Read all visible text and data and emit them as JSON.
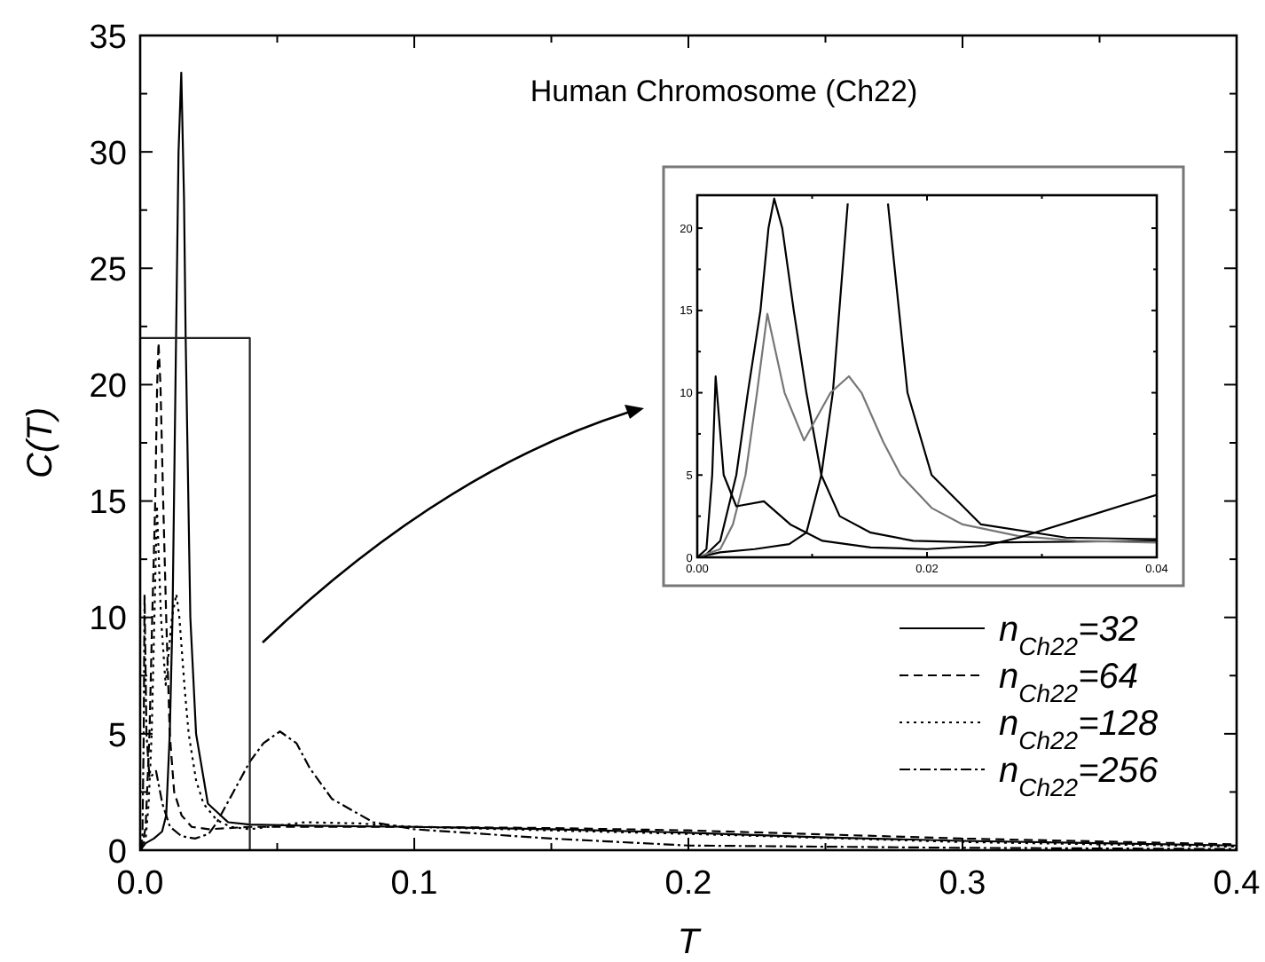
{
  "chart_data": [
    {
      "type": "line",
      "title": "Human Chromosome (Ch22)",
      "xlabel": "T",
      "ylabel": "C(T)",
      "xlim": [
        0,
        0.4
      ],
      "ylim": [
        0,
        35
      ],
      "xticks": [
        {
          "value": 0,
          "label": "0.0"
        },
        {
          "value": 0.05,
          "label": null
        },
        {
          "value": 0.1,
          "label": "0.1"
        },
        {
          "value": 0.15,
          "label": null
        },
        {
          "value": 0.2,
          "label": "0.2"
        },
        {
          "value": 0.25,
          "label": null
        },
        {
          "value": 0.3,
          "label": "0.3"
        },
        {
          "value": 0.35,
          "label": null
        },
        {
          "value": 0.4,
          "label": "0.4"
        }
      ],
      "yticks": [
        0,
        {
          "value": 2.5,
          "label": null
        },
        5,
        {
          "value": 7.5,
          "label": null
        },
        10,
        {
          "value": 12.5,
          "label": null
        },
        15,
        {
          "value": 17.5,
          "label": null
        },
        20,
        {
          "value": 22.5,
          "label": null
        },
        25,
        {
          "value": 27.5,
          "label": null
        },
        30,
        {
          "value": 32.5,
          "label": null
        },
        35
      ],
      "legend": "bottom right",
      "series": [
        {
          "name": "n$_{Ch22}$=32",
          "color": "#000000",
          "line_style": "solid",
          "x": [
            0,
            0.002,
            0.005,
            0.008,
            0.0095,
            0.0108,
            0.0118,
            0.0131,
            0.014,
            0.015,
            0.016,
            0.0166,
            0.0183,
            0.0204,
            0.0247,
            0.0321,
            0.04,
            0.06,
            0.1,
            0.15,
            0.2,
            0.25,
            0.3,
            0.35,
            0.4
          ],
          "values": [
            0,
            0.3,
            0.5,
            0.8,
            1.5,
            5,
            10,
            22,
            30,
            33.4,
            28,
            22,
            10,
            5,
            2,
            1.2,
            1.1,
            1.05,
            1.0,
            0.9,
            0.75,
            0.55,
            0.4,
            0.3,
            0.2
          ]
        },
        {
          "name": "n$_{Ch22}$=64",
          "color": "#000000",
          "line_style": "dashed",
          "x": [
            0,
            0.0005,
            0.002,
            0.0034,
            0.0044,
            0.0055,
            0.0062,
            0.0067,
            0.0074,
            0.0084,
            0.0095,
            0.0108,
            0.0124,
            0.0151,
            0.0188,
            0.025,
            0.04,
            0.07,
            0.1,
            0.15,
            0.2,
            0.3,
            0.4
          ],
          "values": [
            0,
            0,
            1,
            5,
            10,
            15,
            20,
            21.8,
            20,
            15,
            10,
            5,
            2.5,
            1.5,
            1.0,
            0.9,
            1.0,
            1.0,
            1.0,
            0.95,
            0.85,
            0.5,
            0.25
          ]
        },
        {
          "name": "n$_{Ch22}$=128",
          "color": "#000000",
          "line_style": "dotted",
          "x": [
            0,
            0.002,
            0.0031,
            0.0042,
            0.0052,
            0.0061,
            0.0076,
            0.0093,
            0.0116,
            0.0132,
            0.0143,
            0.0162,
            0.0177,
            0.0204,
            0.0231,
            0.0279,
            0.033,
            0.04,
            0.06,
            0.08,
            0.1,
            0.15,
            0.2,
            0.3,
            0.4
          ],
          "values": [
            0,
            0.5,
            2,
            5,
            10,
            14.8,
            10,
            7.1,
            10,
            11,
            10,
            7,
            5,
            3,
            2,
            1.3,
            1.0,
            0.9,
            1.2,
            1.15,
            1.0,
            0.85,
            0.7,
            0.35,
            0.15
          ]
        },
        {
          "name": "n$_{Ch22}$=256",
          "color": "#000000",
          "line_style": "dashdot",
          "x": [
            0,
            0.0008,
            0.0013,
            0.0016,
            0.0023,
            0.0034,
            0.0058,
            0.0081,
            0.0109,
            0.0151,
            0.02,
            0.025,
            0.028,
            0.034,
            0.04,
            0.045,
            0.051,
            0.057,
            0.062,
            0.07,
            0.085,
            0.1,
            0.15,
            0.2,
            0.3,
            0.4
          ],
          "values": [
            0,
            0.5,
            5,
            11,
            5,
            3.1,
            3.4,
            2,
            1,
            0.6,
            0.5,
            0.7,
            1.2,
            2.5,
            3.8,
            4.6,
            5.1,
            4.6,
            3.5,
            2.2,
            1.2,
            0.9,
            0.5,
            0.2,
            0.1,
            0.05
          ]
        },
        {
          "color": "#222222",
          "line_style": "solid",
          "x": [
            0,
            0.04,
            0.04
          ],
          "values": [
            22,
            22,
            0
          ]
        }
      ]
    },
    {
      "type": "line",
      "xlim": [
        0,
        0.04
      ],
      "ylim": [
        0,
        22
      ],
      "xticks": [
        {
          "value": 0,
          "label": "0.00"
        },
        {
          "value": 0.01,
          "label": null
        },
        {
          "value": 0.02,
          "label": "0.02"
        },
        {
          "value": 0.03,
          "label": null
        },
        {
          "value": 0.04,
          "label": "0.04"
        }
      ],
      "yticks": [
        0,
        {
          "value": 2.5,
          "label": null
        },
        5,
        {
          "value": 7.5,
          "label": null
        },
        10,
        {
          "value": 12.5,
          "label": null
        },
        15,
        {
          "value": 17.5,
          "label": null
        },
        20
      ],
      "series": [
        {
          "color": "#000000",
          "line_style": "solid",
          "x": [
            0,
            0.002,
            0.005,
            0.008,
            0.0095,
            0.0108,
            0.0118,
            0.0131,
            0.014,
            0.015,
            0.016,
            0.0166,
            0.0183,
            0.0204,
            0.0247,
            0.0321,
            0.04
          ],
          "values": [
            0,
            0.3,
            0.5,
            0.8,
            1.5,
            5,
            10,
            21.5,
            null,
            null,
            null,
            21.5,
            10,
            5,
            2,
            1.2,
            1.1
          ]
        },
        {
          "color": "#000000",
          "line_style": "solid",
          "x": [
            0,
            0.0005,
            0.002,
            0.0034,
            0.0044,
            0.0055,
            0.0062,
            0.0067,
            0.0074,
            0.0084,
            0.0095,
            0.0108,
            0.0124,
            0.0151,
            0.0188,
            0.025,
            0.04
          ],
          "values": [
            0,
            0,
            1,
            5,
            10,
            15,
            20,
            21.8,
            20,
            15,
            10,
            5,
            2.5,
            1.5,
            1.0,
            0.9,
            1.0
          ]
        },
        {
          "color": "#777777",
          "line_style": "solid",
          "x": [
            0,
            0.002,
            0.0031,
            0.0042,
            0.0052,
            0.0061,
            0.0076,
            0.0093,
            0.0116,
            0.0132,
            0.0143,
            0.0162,
            0.0177,
            0.0204,
            0.0231,
            0.0279,
            0.033,
            0.04
          ],
          "values": [
            0,
            0.5,
            2,
            5,
            10,
            14.8,
            10,
            7.1,
            10,
            11,
            10,
            7,
            5,
            3,
            2,
            1.3,
            1.0,
            0.9
          ]
        },
        {
          "color": "#000000",
          "line_style": "solid",
          "x": [
            0,
            0.0008,
            0.0013,
            0.0016,
            0.0023,
            0.0034,
            0.0058,
            0.0081,
            0.0109,
            0.0151,
            0.02,
            0.025,
            0.028,
            0.034,
            0.04
          ],
          "values": [
            0,
            0.5,
            5,
            11,
            5,
            3.1,
            3.4,
            2,
            1,
            0.6,
            0.5,
            0.7,
            1.2,
            2.5,
            3.8
          ]
        }
      ]
    }
  ]
}
